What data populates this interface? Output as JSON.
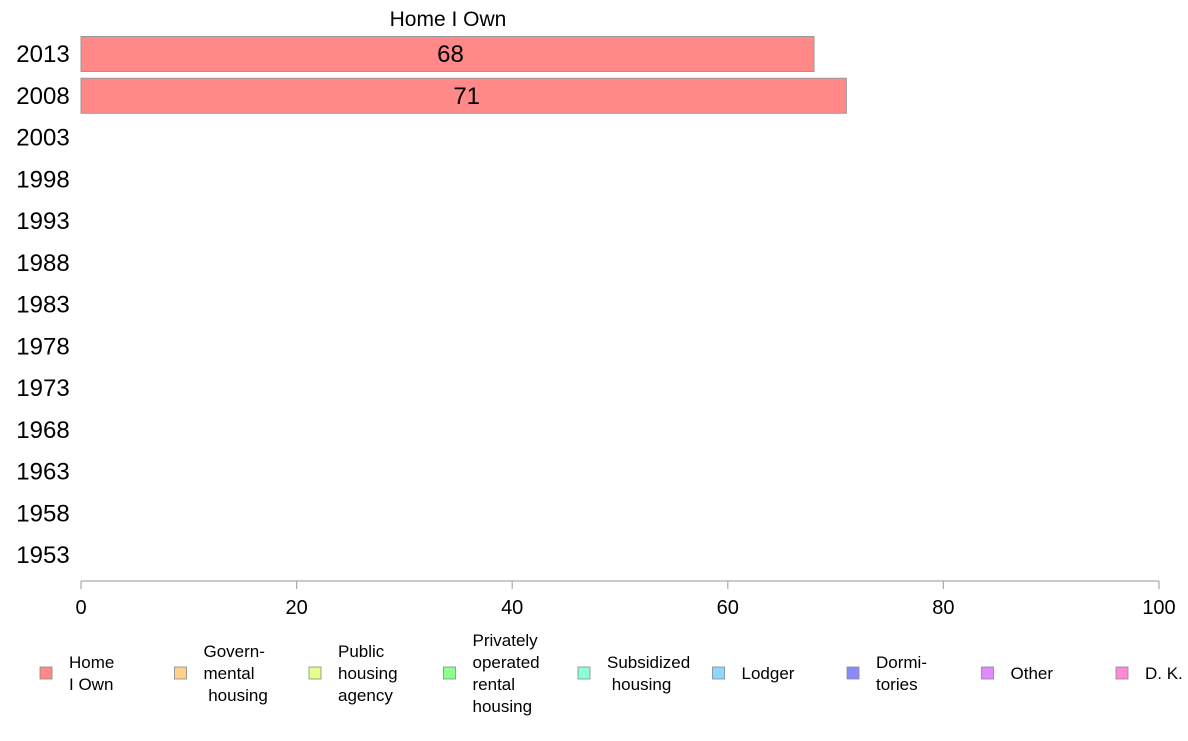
{
  "chart_data": {
    "type": "bar",
    "orientation": "horizontal",
    "title": "Home I Own",
    "categories": [
      "2013",
      "2008",
      "2003",
      "1998",
      "1993",
      "1988",
      "1983",
      "1978",
      "1973",
      "1968",
      "1963",
      "1958",
      "1953"
    ],
    "series": [
      {
        "name": "Home I Own",
        "values": [
          68,
          71,
          null,
          null,
          null,
          null,
          null,
          null,
          null,
          null,
          null,
          null,
          null
        ]
      }
    ],
    "data_labels": [
      "68",
      "71"
    ],
    "xlim": [
      0,
      100
    ],
    "x_ticks": [
      "0",
      "20",
      "40",
      "60",
      "80",
      "100"
    ],
    "grid": false,
    "legend_position": "bottom",
    "legend": [
      {
        "lines": [
          "Home",
          "I Own"
        ],
        "color": "#ff8888"
      },
      {
        "lines": [
          "Govern-",
          "mental",
          " housing"
        ],
        "color": "#ffd08a"
      },
      {
        "lines": [
          "Public",
          "housing",
          "agency"
        ],
        "color": "#e4ff8a"
      },
      {
        "lines": [
          "Privately",
          "operated",
          "rental",
          "housing"
        ],
        "color": "#8cff8c"
      },
      {
        "lines": [
          "Subsidized",
          " housing"
        ],
        "color": "#8affd8"
      },
      {
        "lines": [
          "Lodger"
        ],
        "color": "#8ad8ff"
      },
      {
        "lines": [
          "Dormi-",
          "tories"
        ],
        "color": "#8a8aff"
      },
      {
        "lines": [
          "Other"
        ],
        "color": "#e08aff"
      },
      {
        "lines": [
          "D. K."
        ],
        "color": "#ff8ad8"
      }
    ],
    "colors": {
      "bar_fill": "#ff8888",
      "bar_stroke": "#999999",
      "axis": "#aaaaaa"
    }
  }
}
